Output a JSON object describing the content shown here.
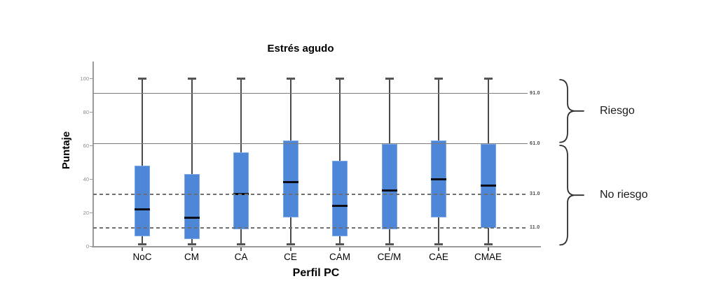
{
  "title": "Estrés agudo",
  "y_axis": {
    "label": "Puntaje",
    "ticks": [
      "100",
      "80",
      "60",
      "40",
      "20",
      "0"
    ]
  },
  "x_axis": {
    "label": "Perfil PC"
  },
  "annotations": [
    {
      "label": "Riesgo",
      "range": [
        61,
        100
      ]
    },
    {
      "label": "No riesgo",
      "range": [
        0,
        61
      ]
    }
  ],
  "colors": {
    "box_fill": "#4e86d8",
    "box_border": "#7aa8e8",
    "median": "#0d0d17",
    "whisker": "#4a4a4a",
    "whisker_cap": "#555555",
    "ref_solid": "#7d7d7d",
    "ref_dashed": "#6e6e6e",
    "axis": "#9a9a9a",
    "brace": "#2e2e2e"
  },
  "chart_data": {
    "type": "boxplot",
    "title": "Estrés agudo",
    "xlabel": "Perfil PC",
    "ylabel": "Puntaje",
    "ylim": [
      0,
      100
    ],
    "y_ticks": [
      100,
      80,
      60,
      40,
      20,
      0
    ],
    "grid": "reference lines only",
    "legend": null,
    "categories": [
      "NoC",
      "CM",
      "CA",
      "CE",
      "CAM",
      "CE/M",
      "CAE",
      "CMAE"
    ],
    "boxes": [
      {
        "category": "NoC",
        "whisker_low": 0,
        "q1": 6,
        "median": 22,
        "q3": 48,
        "whisker_high": 100
      },
      {
        "category": "CM",
        "whisker_low": 0,
        "q1": 4,
        "median": 17,
        "q3": 43,
        "whisker_high": 100
      },
      {
        "category": "CA",
        "whisker_low": 0,
        "q1": 10,
        "median": 31,
        "q3": 56,
        "whisker_high": 100
      },
      {
        "category": "CE",
        "whisker_low": 0,
        "q1": 17,
        "median": 38,
        "q3": 63,
        "whisker_high": 100
      },
      {
        "category": "CAM",
        "whisker_low": 0,
        "q1": 6,
        "median": 24,
        "q3": 51,
        "whisker_high": 100
      },
      {
        "category": "CE/M",
        "whisker_low": 0,
        "q1": 10,
        "median": 33,
        "q3": 61,
        "whisker_high": 100
      },
      {
        "category": "CAE",
        "whisker_low": 0,
        "q1": 17,
        "median": 40,
        "q3": 63,
        "whisker_high": 100
      },
      {
        "category": "CMAE",
        "whisker_low": 0,
        "q1": 11,
        "median": 36,
        "q3": 61,
        "whisker_high": 100
      }
    ],
    "reference_lines": [
      {
        "value": 91.0,
        "label": "91.0",
        "style": "solid"
      },
      {
        "value": 61.0,
        "label": "61.0",
        "style": "solid"
      },
      {
        "value": 31.0,
        "label": "31.0",
        "style": "dashed"
      },
      {
        "value": 11.0,
        "label": "11.0",
        "style": "dashed"
      }
    ]
  }
}
